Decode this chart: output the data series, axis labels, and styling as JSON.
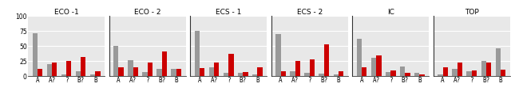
{
  "subplots": [
    {
      "title": "ECO -1",
      "categories": [
        "A",
        "A?",
        "?",
        "B?",
        "B"
      ],
      "gray": [
        72,
        20,
        3,
        8,
        3
      ],
      "red": [
        12,
        22,
        25,
        32,
        8
      ]
    },
    {
      "title": "ECO - 2",
      "categories": [
        "A",
        "A?",
        "?",
        "B?",
        "B"
      ],
      "gray": [
        50,
        27,
        6,
        12,
        12
      ],
      "red": [
        15,
        15,
        22,
        41,
        12
      ]
    },
    {
      "title": "ECS - 1",
      "categories": [
        "A",
        "A?",
        "?",
        "B?",
        "B"
      ],
      "gray": [
        76,
        15,
        5,
        5,
        2
      ],
      "red": [
        13,
        22,
        37,
        7,
        15
      ]
    },
    {
      "title": "ECS - 2",
      "categories": [
        "A",
        "A?",
        "?",
        "B?",
        "B"
      ],
      "gray": [
        70,
        8,
        5,
        4,
        3
      ],
      "red": [
        8,
        25,
        28,
        53,
        8
      ]
    },
    {
      "title": "IC",
      "categories": [
        "A",
        "A?",
        "?",
        "B?",
        "B"
      ],
      "gray": [
        62,
        30,
        6,
        16,
        5
      ],
      "red": [
        15,
        35,
        9,
        5,
        3
      ]
    },
    {
      "title": "TOP",
      "categories": [
        "A",
        "A?",
        "?",
        "B?",
        "B"
      ],
      "gray": [
        3,
        12,
        8,
        25,
        46
      ],
      "red": [
        15,
        22,
        9,
        22,
        10
      ]
    }
  ],
  "ylim": [
    0,
    100
  ],
  "yticks": [
    0,
    25,
    50,
    75,
    100
  ],
  "gray_color": "#999999",
  "red_color": "#cc0000",
  "fig_bg_color": "#ffffff",
  "plot_bg_color": "#e8e8e8",
  "grid_color": "#ffffff",
  "bar_width": 0.35,
  "title_fontsize": 6.5,
  "tick_fontsize": 5.5,
  "ytick_fontsize": 5.5
}
